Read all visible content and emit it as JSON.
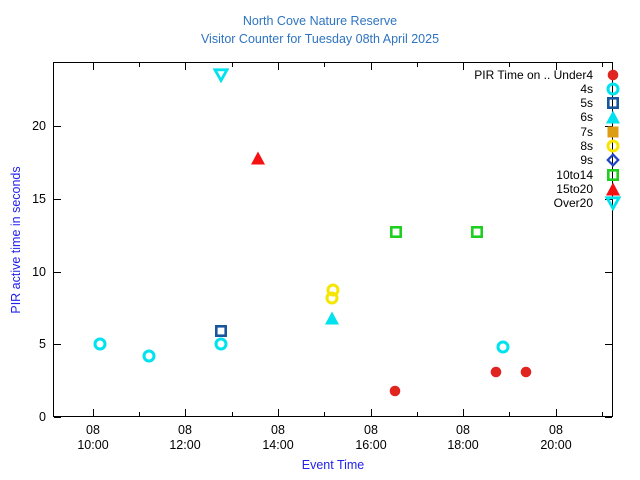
{
  "chart_data": {
    "type": "scatter",
    "title": "North Cove Nature Reserve",
    "subtitle": "Visitor Counter for Tuesday 08th April 2025",
    "title_color": "#2e74c1",
    "axis_label_color": "#2222ee",
    "xlabel": "Event Time",
    "ylabel": "PIR active time in seconds",
    "x_axis": {
      "date_line": "08",
      "min_hours": 9.145,
      "max_hours": 21.235,
      "major_ticks": [
        "10:00",
        "12:00",
        "14:00",
        "16:00",
        "18:00",
        "20:00"
      ],
      "minor_tick_hours": [
        11,
        13,
        15,
        17,
        19,
        21
      ]
    },
    "y_axis": {
      "min": 0,
      "max": 24.4,
      "major_ticks": [
        0,
        5,
        10,
        15,
        20
      ]
    },
    "grid": false,
    "legend_position": "top-right-inside",
    "series": [
      {
        "label": "PIR Time on .. Under4",
        "marker": "circle-filled",
        "color": "#e02420",
        "points": [
          {
            "time": "16:32",
            "seconds": 1.8
          },
          {
            "time": "18:43",
            "seconds": 3.1
          },
          {
            "time": "19:21",
            "seconds": 3.1
          }
        ]
      },
      {
        "label": "4s",
        "marker": "circle-open",
        "color": "#00e2ee",
        "points": [
          {
            "time": "10:10",
            "seconds": 5.0
          },
          {
            "time": "11:13",
            "seconds": 4.2
          },
          {
            "time": "12:46",
            "seconds": 5.0
          },
          {
            "time": "18:52",
            "seconds": 4.8
          }
        ]
      },
      {
        "label": "5s",
        "marker": "square-open",
        "color": "#17559c",
        "points": [
          {
            "time": "12:46",
            "seconds": 5.9
          }
        ]
      },
      {
        "label": "6s",
        "marker": "triangle-up-filled",
        "color": "#00e2ee",
        "points": [
          {
            "time": "15:10",
            "seconds": 6.8
          }
        ]
      },
      {
        "label": "7s",
        "marker": "square-filled",
        "color": "#dd9c11",
        "points": []
      },
      {
        "label": "8s",
        "marker": "circle-open",
        "color": "#f5e600",
        "points": [
          {
            "time": "15:12",
            "seconds": 8.7
          },
          {
            "time": "15:10",
            "seconds": 8.2
          }
        ]
      },
      {
        "label": "9s",
        "marker": "diamond-open",
        "color": "#2147c5",
        "points": []
      },
      {
        "label": "10to14",
        "marker": "square-open",
        "color": "#1ecf1e",
        "points": [
          {
            "time": "16:33",
            "seconds": 12.7
          },
          {
            "time": "18:18",
            "seconds": 12.7
          }
        ]
      },
      {
        "label": "15to20",
        "marker": "triangle-up-filled",
        "color": "#f51111",
        "points": [
          {
            "time": "13:34",
            "seconds": 17.8
          }
        ]
      },
      {
        "label": "Over20",
        "marker": "triangle-down-open",
        "color": "#00e2ee",
        "points": [
          {
            "time": "12:46",
            "seconds": 23.5
          }
        ]
      }
    ]
  }
}
